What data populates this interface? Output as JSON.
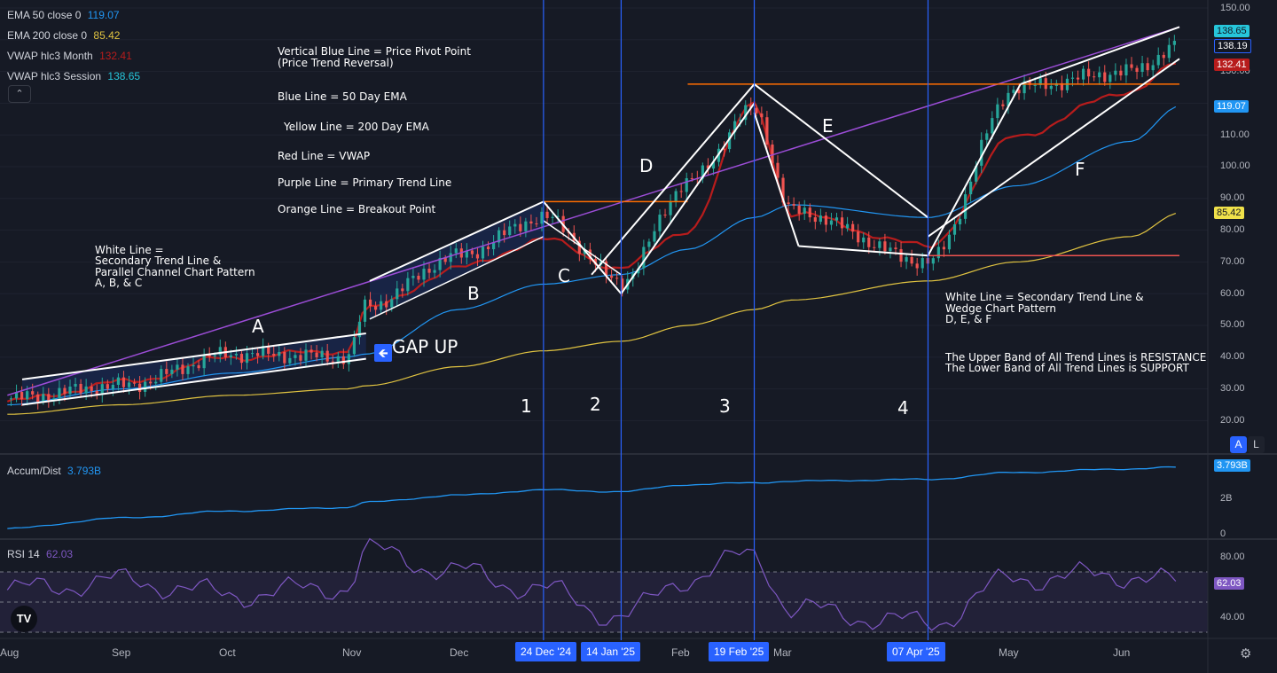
{
  "legend": {
    "ema50_name": "EMA 50 close 0",
    "ema50_value": "119.07",
    "ema200_name": "EMA 200 close 0",
    "ema200_value": "85.42",
    "vwap_month_name": "VWAP hlc3 Month",
    "vwap_month_value": "132.41",
    "vwap_session_name": "VWAP hlc3 Session",
    "vwap_session_value": "138.65",
    "collapse_icon": "chevron-up-icon"
  },
  "annotations": {
    "legend_lines": [
      "Vertical Blue Line = Price Pivot Point",
      "(Price Trend Reversal)",
      "Blue Line = 50 Day EMA",
      "Yellow Line = 200 Day EMA",
      "Red Line = VWAP",
      "Purple Line = Primary Trend Line",
      "Orange Line = Breakout Point"
    ],
    "left_note": [
      "White Line =",
      "Secondary Trend Line &",
      "Parallel Channel Chart Pattern",
      "A, B, & C"
    ],
    "right_note": [
      "White Line = Secondary Trend Line &",
      "Wedge Chart Pattern",
      "D, E, & F"
    ],
    "band_note": [
      "The Upper Band of All Trend Lines is RESISTANCE",
      "The Lower Band of All Trend Lines is SUPPORT"
    ],
    "gap_up": "GAP UP",
    "pattern_letters": [
      "A",
      "B",
      "C",
      "D",
      "E",
      "F"
    ],
    "pivot_numbers": [
      "1",
      "2",
      "3",
      "4"
    ]
  },
  "price_axis": {
    "ticks": [
      "150.00",
      "140.00",
      "130.00",
      "120.00",
      "110.00",
      "100.00",
      "90.00",
      "80.00",
      "70.00",
      "60.00",
      "50.00",
      "40.00",
      "30.00",
      "20.00"
    ],
    "tags": [
      "138.65",
      "138.19",
      "132.41",
      "119.07",
      "85.42"
    ],
    "scale_buttons": [
      "A",
      "L"
    ]
  },
  "time_axis": {
    "labels": [
      "Aug",
      "Sep",
      "Oct",
      "Nov",
      "Dec",
      "Feb",
      "Mar",
      "May",
      "Jun"
    ],
    "pivot_dates": [
      "24 Dec '24",
      "14 Jan '25",
      "19 Feb '25",
      "07 Apr '25"
    ],
    "settings_icon": "gear-icon"
  },
  "accum": {
    "name": "Accum/Dist",
    "value": "3.793B",
    "ticks": [
      "2B",
      "0"
    ],
    "tag": "3.793B"
  },
  "rsi": {
    "name": "RSI 14",
    "value": "62.03",
    "ticks": [
      "80.00",
      "40.00"
    ],
    "tag": "62.03"
  },
  "logo_text": "TV",
  "colors": {
    "background": "#161a25",
    "ema50": "#2196f3",
    "ema200": "#e0c341",
    "vwap": "#b71c1c",
    "vwap_session": "#26c6da",
    "trend": "#9c4dd7",
    "breakout": "#ff6d00",
    "pivot": "#2962ff",
    "up_candle": "#26a69a",
    "down_candle": "#ef5350",
    "rsi": "#7e57c2"
  },
  "chart_data": {
    "type": "line",
    "title": "",
    "x": [
      "2024-08-01",
      "2024-09-01",
      "2024-10-01",
      "2024-11-01",
      "2024-11-06",
      "2024-12-01",
      "2024-12-24",
      "2025-01-14",
      "2025-02-01",
      "2025-02-19",
      "2025-03-01",
      "2025-04-07",
      "2025-05-01",
      "2025-06-01",
      "2025-06-14"
    ],
    "ylim": [
      15,
      150
    ],
    "series": [
      {
        "name": "EMA 50 close 0",
        "values": [
          25,
          30,
          35,
          40,
          41,
          55,
          63,
          66,
          74,
          84,
          88,
          84,
          94,
          108,
          119.07
        ]
      },
      {
        "name": "EMA 200 close 0",
        "values": [
          22,
          25,
          28,
          30,
          31,
          37,
          42,
          45,
          50,
          55,
          58,
          64,
          70,
          78,
          85.42
        ]
      },
      {
        "name": "VWAP hlc3 Month",
        "values": [
          26,
          32,
          40,
          42,
          55,
          68,
          77,
          68,
          80,
          120,
          85,
          75,
          110,
          124,
          132.41
        ]
      },
      {
        "name": "Price (close)",
        "values": [
          27,
          31,
          41,
          40,
          56,
          72,
          84,
          64,
          95,
          118,
          86,
          70,
          125,
          130,
          138.19
        ]
      },
      {
        "name": "Accum/Dist",
        "values": [
          0.3,
          0.9,
          1.3,
          1.5,
          1.8,
          2.2,
          2.5,
          2.4,
          2.8,
          2.9,
          3.0,
          3.1,
          3.5,
          3.7,
          3.793
        ]
      },
      {
        "name": "RSI 14",
        "values": [
          58,
          64,
          55,
          60,
          84,
          70,
          58,
          40,
          66,
          82,
          45,
          36,
          66,
          68,
          62.03
        ]
      }
    ],
    "primary_trend_line": {
      "x": [
        "2024-08-01",
        "2025-06-14"
      ],
      "y": [
        28,
        144
      ]
    },
    "breakout_levels": [
      {
        "x": [
          "2024-12-24",
          "2025-02-01"
        ],
        "y": 89
      },
      {
        "x": [
          "2025-02-01",
          "2025-06-14"
        ],
        "y": 126
      },
      {
        "x": [
          "2025-04-07",
          "2025-06-14"
        ],
        "y": 72
      }
    ],
    "pivot_dates": [
      "2024-12-24",
      "2025-01-14",
      "2025-02-19",
      "2025-04-07"
    ],
    "current": {
      "price": 138.19,
      "vwap_session": 138.65,
      "vwap_month": 132.41,
      "ema50": 119.07,
      "ema200": 85.42,
      "accum_dist": "3.793B",
      "rsi": 62.03
    }
  }
}
